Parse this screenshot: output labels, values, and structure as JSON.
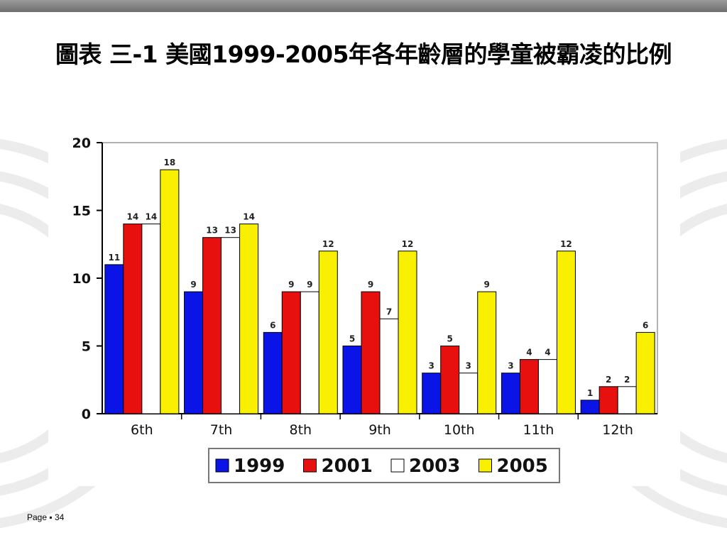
{
  "slide": {
    "title": "圖表 三-1 美國1999-2005年各年齡層的學童被霸凌的比例",
    "page_label": "Page ▪ 34"
  },
  "colors": {
    "1999": "#0a14e6",
    "2001": "#e80f0f",
    "2003": "#ffffff",
    "2005": "#f8f000",
    "axis": "#000000",
    "grid": "#c8c8c8"
  },
  "chart_data": {
    "type": "bar",
    "categories": [
      "6th",
      "7th",
      "8th",
      "9th",
      "10th",
      "11th",
      "12th"
    ],
    "series": [
      {
        "name": "1999",
        "values": [
          11,
          9,
          6,
          5,
          3,
          3,
          1
        ]
      },
      {
        "name": "2001",
        "values": [
          14,
          13,
          9,
          9,
          5,
          4,
          2
        ]
      },
      {
        "name": "2003",
        "values": [
          14,
          13,
          9,
          7,
          3,
          4,
          2
        ]
      },
      {
        "name": "2005",
        "values": [
          18,
          14,
          12,
          12,
          9,
          12,
          6
        ]
      }
    ],
    "ylim": [
      0,
      20
    ],
    "yticks": [
      0,
      5,
      10,
      15,
      20
    ],
    "grid": false,
    "legend_position": "bottom",
    "data_labels": true
  }
}
